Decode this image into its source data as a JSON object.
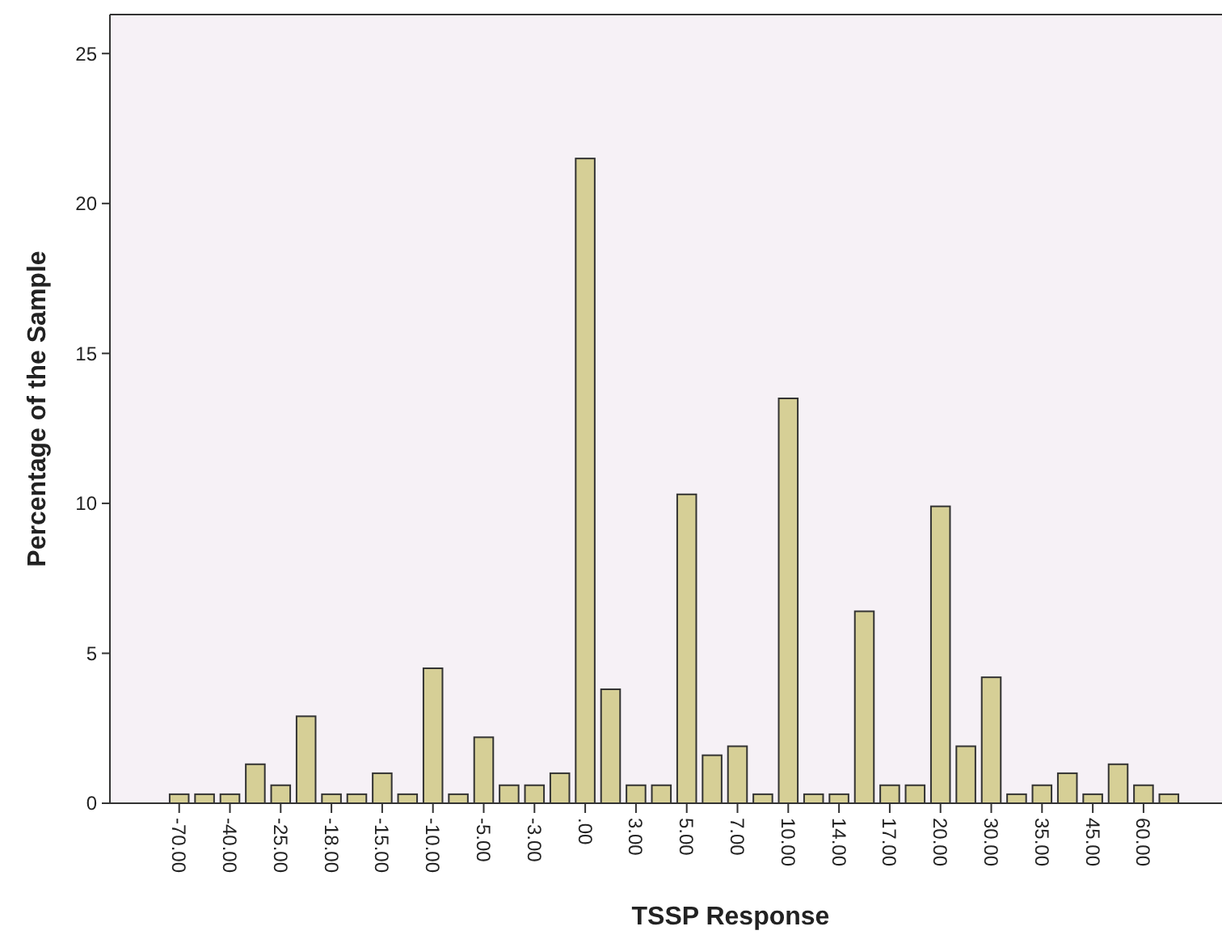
{
  "chart_data": {
    "type": "bar",
    "xlabel": "TSSP Response",
    "ylabel": "Percentage of the Sample",
    "categories": [
      "-70.00",
      null,
      "-40.00",
      null,
      "-25.00",
      null,
      "-18.00",
      null,
      "-15.00",
      null,
      "-10.00",
      null,
      "-5.00",
      null,
      "-3.00",
      null,
      ".00",
      null,
      "3.00",
      null,
      "5.00",
      null,
      "7.00",
      null,
      "10.00",
      null,
      "14.00",
      null,
      "17.00",
      null,
      "20.00",
      null,
      "30.00",
      null,
      "35.00",
      null,
      "45.00",
      null,
      "60.00",
      null
    ],
    "values": [
      0.3,
      0.3,
      0.3,
      1.3,
      0.6,
      2.9,
      0.3,
      0.3,
      1.0,
      0.3,
      4.5,
      0.3,
      2.2,
      0.6,
      0.6,
      1.0,
      21.5,
      3.8,
      0.6,
      0.6,
      10.3,
      1.6,
      1.9,
      0.3,
      13.5,
      0.3,
      0.3,
      6.4,
      0.6,
      0.6,
      9.9,
      1.9,
      4.2,
      0.3,
      0.6,
      1.0,
      0.3,
      1.3,
      0.6,
      0.3
    ],
    "color": "#d6cf96",
    "ylim": [
      0,
      26.3
    ],
    "yticks": [
      0,
      5,
      10,
      15,
      20,
      25
    ],
    "grid": false
  }
}
